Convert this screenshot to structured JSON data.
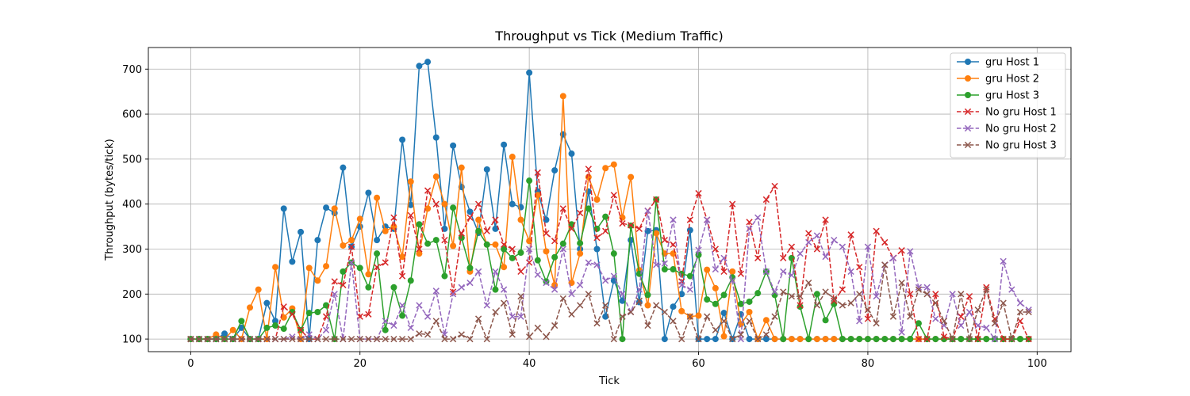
{
  "chart_data": {
    "type": "line",
    "title": "Throughput vs Tick (Medium Traffic)",
    "xlabel": "Tick",
    "ylabel": "Throughput (bytes/tick)",
    "xlim": [
      -5,
      104
    ],
    "ylim": [
      72,
      748
    ],
    "xticks": [
      0,
      20,
      40,
      60,
      80,
      100
    ],
    "yticks": [
      100,
      200,
      300,
      400,
      500,
      600,
      700
    ],
    "grid": true,
    "legend_position": "top-right",
    "series": [
      {
        "name": "gru Host 1",
        "color": "#1f77b4",
        "style": "solid",
        "marker": "circle",
        "values": [
          100,
          100,
          100,
          100,
          112,
          100,
          125,
          100,
          100,
          180,
          140,
          390,
          272,
          338,
          100,
          320,
          392,
          380,
          481,
          305,
          350,
          425,
          320,
          350,
          345,
          543,
          398,
          707,
          716,
          548,
          345,
          530,
          438,
          383,
          336,
          477,
          345,
          532,
          400,
          393,
          692,
          428,
          365,
          475,
          555,
          512,
          300,
          428,
          300,
          150,
          230,
          185,
          320,
          182,
          340,
          342,
          100,
          172,
          200,
          342,
          100,
          100,
          100,
          158,
          100,
          155,
          100,
          100,
          100,
          100,
          100,
          100,
          100,
          100,
          100,
          100,
          100,
          100,
          100,
          100,
          100,
          100,
          100,
          100,
          100,
          100,
          100,
          100,
          100,
          100,
          100,
          100,
          100,
          100,
          100,
          100,
          100,
          100,
          100,
          100
        ]
      },
      {
        "name": "gru Host 2",
        "color": "#ff7f0e",
        "style": "solid",
        "marker": "circle",
        "values": [
          100,
          100,
          100,
          110,
          100,
          120,
          100,
          170,
          210,
          100,
          260,
          148,
          168,
          100,
          258,
          230,
          262,
          390,
          308,
          320,
          367,
          244,
          414,
          340,
          350,
          283,
          450,
          290,
          390,
          461,
          400,
          307,
          481,
          250,
          365,
          310,
          310,
          260,
          505,
          365,
          318,
          420,
          295,
          220,
          640,
          225,
          290,
          460,
          410,
          480,
          488,
          370,
          460,
          253,
          175,
          335,
          290,
          290,
          162,
          150,
          152,
          254,
          213,
          106,
          250,
          133,
          160,
          100,
          142,
          100,
          100,
          100,
          100,
          100,
          100,
          100,
          100,
          100,
          100,
          100,
          100,
          100,
          100,
          100,
          100,
          100,
          100,
          100,
          100,
          100,
          100,
          100,
          100,
          100,
          100,
          100,
          100,
          100,
          100,
          100
        ]
      },
      {
        "name": "gru Host 3",
        "color": "#2ca02c",
        "style": "solid",
        "marker": "circle",
        "values": [
          100,
          100,
          100,
          100,
          100,
          100,
          140,
          100,
          100,
          125,
          130,
          123,
          160,
          120,
          158,
          160,
          175,
          100,
          250,
          270,
          258,
          215,
          290,
          120,
          215,
          152,
          230,
          355,
          312,
          320,
          240,
          392,
          325,
          258,
          340,
          310,
          210,
          300,
          280,
          292,
          452,
          275,
          228,
          282,
          312,
          355,
          313,
          390,
          345,
          372,
          290,
          100,
          352,
          245,
          198,
          410,
          255,
          255,
          245,
          240,
          287,
          188,
          178,
          198,
          237,
          178,
          183,
          202,
          250,
          198,
          100,
          280,
          172,
          100,
          200,
          142,
          178,
          100,
          100,
          100,
          100,
          100,
          100,
          100,
          100,
          100,
          135,
          100,
          100,
          100,
          100,
          100,
          100,
          100,
          100,
          100,
          100,
          100,
          100,
          100
        ]
      },
      {
        "name": "No gru Host 1",
        "color": "#d62728",
        "style": "dashed",
        "marker": "x",
        "values": [
          100,
          100,
          100,
          100,
          100,
          100,
          100,
          100,
          100,
          100,
          100,
          172,
          155,
          120,
          100,
          100,
          150,
          228,
          220,
          305,
          150,
          155,
          260,
          270,
          370,
          240,
          375,
          300,
          430,
          400,
          320,
          205,
          335,
          370,
          400,
          340,
          365,
          310,
          300,
          250,
          270,
          470,
          335,
          318,
          390,
          345,
          380,
          478,
          325,
          340,
          420,
          357,
          353,
          345,
          385,
          410,
          320,
          310,
          228,
          365,
          424,
          365,
          300,
          250,
          400,
          245,
          360,
          280,
          410,
          440,
          280,
          305,
          175,
          335,
          300,
          365,
          185,
          210,
          332,
          260,
          145,
          340,
          315,
          280,
          297,
          200,
          100,
          100,
          200,
          105,
          100,
          150,
          195,
          100,
          215,
          145,
          100,
          100,
          140,
          100
        ]
      },
      {
        "name": "No gru Host 2",
        "color": "#9467bd",
        "style": "dashed",
        "marker": "x",
        "values": [
          100,
          100,
          100,
          100,
          100,
          100,
          100,
          100,
          100,
          100,
          100,
          100,
          105,
          100,
          110,
          100,
          120,
          200,
          100,
          270,
          100,
          100,
          100,
          140,
          130,
          175,
          125,
          175,
          150,
          207,
          110,
          200,
          215,
          225,
          250,
          175,
          250,
          210,
          150,
          150,
          300,
          243,
          225,
          210,
          300,
          200,
          220,
          270,
          265,
          230,
          240,
          200,
          160,
          210,
          385,
          265,
          268,
          365,
          220,
          210,
          298,
          365,
          255,
          280,
          230,
          100,
          345,
          370,
          250,
          205,
          250,
          242,
          290,
          315,
          330,
          283,
          320,
          305,
          250,
          140,
          305,
          195,
          265,
          280,
          115,
          295,
          215,
          215,
          145,
          130,
          200,
          130,
          160,
          130,
          125,
          100,
          273,
          210,
          180,
          165
        ]
      },
      {
        "name": "No gru Host 3",
        "color": "#8c564b",
        "style": "dashed",
        "marker": "x",
        "values": [
          100,
          100,
          100,
          100,
          100,
          100,
          100,
          100,
          100,
          100,
          100,
          100,
          100,
          100,
          100,
          100,
          100,
          100,
          100,
          100,
          100,
          100,
          100,
          100,
          100,
          100,
          100,
          112,
          110,
          140,
          100,
          100,
          110,
          100,
          145,
          100,
          160,
          180,
          110,
          195,
          105,
          125,
          105,
          130,
          190,
          155,
          175,
          200,
          135,
          175,
          100,
          150,
          160,
          185,
          130,
          175,
          160,
          140,
          100,
          150,
          100,
          150,
          120,
          140,
          100,
          110,
          140,
          100,
          110,
          150,
          205,
          195,
          195,
          225,
          175,
          205,
          190,
          175,
          180,
          200,
          165,
          135,
          265,
          150,
          225,
          150,
          210,
          200,
          180,
          140,
          100,
          200,
          100,
          165,
          210,
          135,
          180,
          100,
          160,
          160
        ]
      }
    ]
  }
}
